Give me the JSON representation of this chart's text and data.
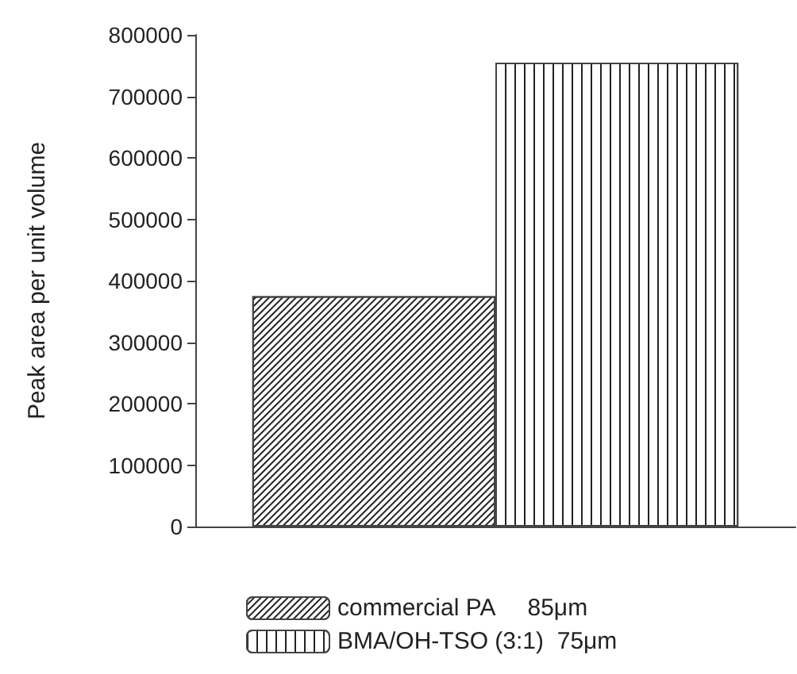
{
  "chart_data": {
    "type": "bar",
    "ylabel": "Peak area per unit volume",
    "categories": [
      null
    ],
    "series": [
      {
        "name": "commercial PA     85μm",
        "color": "#ffffff",
        "values": [
          375000
        ]
      },
      {
        "name": "BMA/OH-TSO (3:1)  75μm",
        "color": "#ffffff",
        "values": [
          755000
        ]
      }
    ],
    "ylim": [
      0,
      800000
    ],
    "yticks": [
      0,
      100000,
      200000,
      300000,
      400000,
      500000,
      600000,
      700000,
      800000
    ],
    "grid": false,
    "legend": "bottom"
  }
}
